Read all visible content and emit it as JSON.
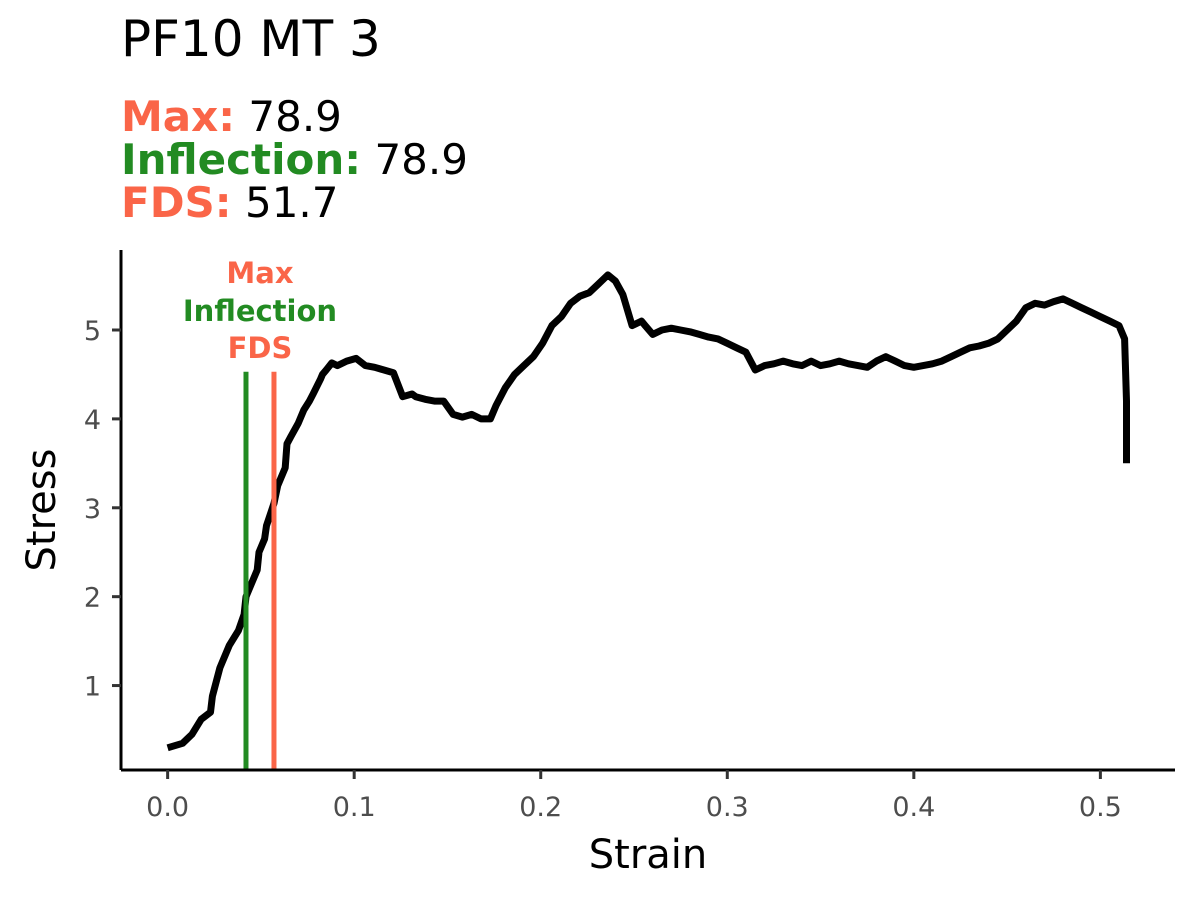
{
  "title": "PF10 MT 3",
  "stats": [
    {
      "label": "Max:",
      "value": "78.9",
      "color": "#FA6548"
    },
    {
      "label": "Inflection:",
      "value": "78.9",
      "color": "#228B22"
    },
    {
      "label": "FDS:",
      "value": "51.7",
      "color": "#FA6548"
    }
  ],
  "chart_data": {
    "type": "line",
    "title": "PF10 MT 3",
    "xlabel": "Strain",
    "ylabel": "Stress",
    "xlim": [
      -0.025,
      0.54
    ],
    "ylim": [
      0.05,
      5.9
    ],
    "xticks": [
      0.0,
      0.1,
      0.2,
      0.3,
      0.4,
      0.5
    ],
    "xtick_labels": [
      "0.0",
      "0.1",
      "0.2",
      "0.3",
      "0.4",
      "0.5"
    ],
    "yticks": [
      1,
      2,
      3,
      4,
      5
    ],
    "ytick_labels": [
      "1",
      "2",
      "3",
      "4",
      "5"
    ],
    "grid": false,
    "series": [
      {
        "color": "#000000",
        "x": [
          0.0,
          0.008,
          0.013,
          0.018,
          0.023,
          0.024,
          0.028,
          0.033,
          0.038,
          0.041,
          0.042,
          0.045,
          0.048,
          0.049,
          0.052,
          0.053,
          0.057,
          0.059,
          0.063,
          0.064,
          0.066,
          0.07,
          0.073,
          0.076,
          0.078,
          0.082,
          0.083,
          0.085,
          0.088,
          0.091,
          0.096,
          0.101,
          0.106,
          0.111,
          0.116,
          0.121,
          0.126,
          0.131,
          0.133,
          0.138,
          0.143,
          0.148,
          0.153,
          0.158,
          0.163,
          0.168,
          0.173,
          0.176,
          0.181,
          0.186,
          0.191,
          0.196,
          0.201,
          0.206,
          0.211,
          0.216,
          0.221,
          0.226,
          0.231,
          0.236,
          0.24,
          0.244,
          0.249,
          0.254,
          0.256,
          0.26,
          0.265,
          0.27,
          0.275,
          0.28,
          0.285,
          0.29,
          0.295,
          0.3,
          0.305,
          0.31,
          0.315,
          0.32,
          0.325,
          0.33,
          0.335,
          0.34,
          0.345,
          0.35,
          0.355,
          0.36,
          0.365,
          0.37,
          0.375,
          0.38,
          0.385,
          0.39,
          0.395,
          0.4,
          0.405,
          0.41,
          0.415,
          0.42,
          0.425,
          0.43,
          0.435,
          0.44,
          0.445,
          0.45,
          0.455,
          0.46,
          0.465,
          0.47,
          0.475,
          0.48,
          0.485,
          0.49,
          0.495,
          0.5,
          0.505,
          0.51,
          0.513,
          0.514,
          0.514
        ],
        "y": [
          0.3,
          0.35,
          0.45,
          0.62,
          0.7,
          0.88,
          1.2,
          1.45,
          1.62,
          1.8,
          2.0,
          2.15,
          2.3,
          2.5,
          2.65,
          2.8,
          3.05,
          3.25,
          3.45,
          3.72,
          3.8,
          3.95,
          4.1,
          4.2,
          4.28,
          4.45,
          4.5,
          4.55,
          4.63,
          4.6,
          4.65,
          4.68,
          4.6,
          4.58,
          4.55,
          4.52,
          4.25,
          4.28,
          4.25,
          4.22,
          4.2,
          4.2,
          4.05,
          4.02,
          4.05,
          4.0,
          4.0,
          4.15,
          4.35,
          4.5,
          4.6,
          4.7,
          4.85,
          5.05,
          5.15,
          5.3,
          5.38,
          5.42,
          5.52,
          5.62,
          5.55,
          5.4,
          5.05,
          5.1,
          5.05,
          4.95,
          5.0,
          5.02,
          5.0,
          4.98,
          4.95,
          4.92,
          4.9,
          4.85,
          4.8,
          4.75,
          4.55,
          4.6,
          4.62,
          4.65,
          4.62,
          4.6,
          4.65,
          4.6,
          4.62,
          4.65,
          4.62,
          4.6,
          4.58,
          4.65,
          4.7,
          4.65,
          4.6,
          4.58,
          4.6,
          4.62,
          4.65,
          4.7,
          4.75,
          4.8,
          4.82,
          4.85,
          4.9,
          5.0,
          5.1,
          5.25,
          5.3,
          5.28,
          5.32,
          5.35,
          5.3,
          5.25,
          5.2,
          5.15,
          5.1,
          5.05,
          4.9,
          4.2,
          3.5
        ]
      }
    ],
    "markers": [
      {
        "x": 0.042,
        "color": "#228B22"
      },
      {
        "x": 0.057,
        "color": "#FA6548"
      }
    ],
    "annotations": [
      {
        "text": "Max",
        "color": "#FA6548"
      },
      {
        "text": "Inflection",
        "color": "#228B22"
      },
      {
        "text": "FDS",
        "color": "#FA6548"
      }
    ]
  }
}
